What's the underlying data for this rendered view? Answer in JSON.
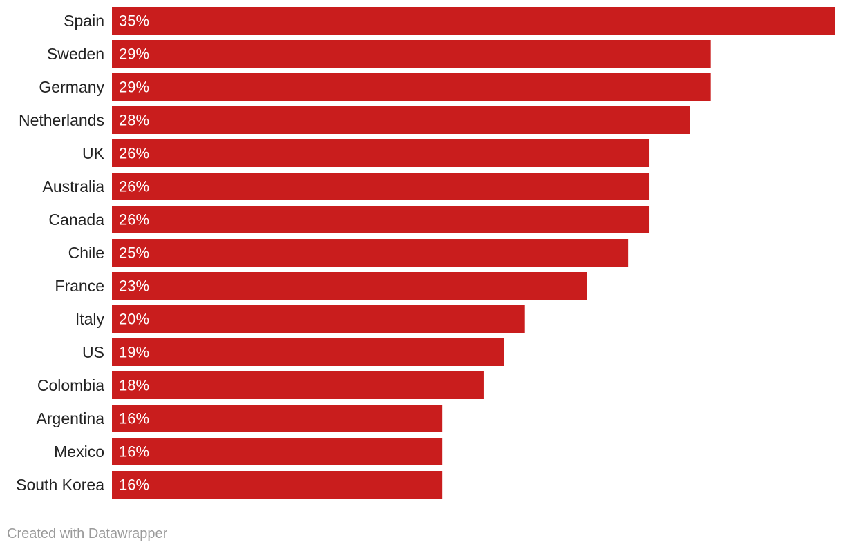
{
  "chart_data": {
    "type": "bar",
    "orientation": "horizontal",
    "categories": [
      "Spain",
      "Sweden",
      "Germany",
      "Netherlands",
      "UK",
      "Australia",
      "Canada",
      "Chile",
      "France",
      "Italy",
      "US",
      "Colombia",
      "Argentina",
      "Mexico",
      "South Korea"
    ],
    "values": [
      35,
      29,
      29,
      28,
      26,
      26,
      26,
      25,
      23,
      20,
      19,
      18,
      16,
      16,
      16
    ],
    "value_labels": [
      "35%",
      "29%",
      "29%",
      "28%",
      "26%",
      "26%",
      "26%",
      "25%",
      "23%",
      "20%",
      "19%",
      "18%",
      "16%",
      "16%",
      "16%"
    ],
    "xlim": [
      0,
      35
    ],
    "grid": false,
    "legend": "none",
    "bar_color": "#c91d1d"
  },
  "footer": {
    "credit": "Created with Datawrapper"
  }
}
